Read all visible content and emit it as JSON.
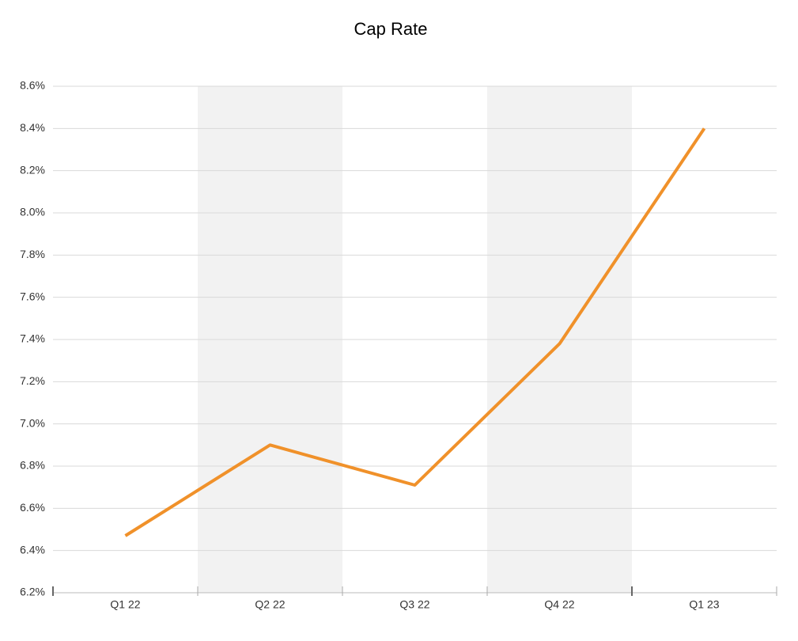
{
  "chart_data": {
    "type": "line",
    "title": "Cap Rate",
    "categories": [
      "Q1 22",
      "Q2 22",
      "Q3 22",
      "Q4 22",
      "Q1 23"
    ],
    "values": [
      6.47,
      6.9,
      6.71,
      7.38,
      8.4
    ],
    "color": "#f0912a",
    "ylim": [
      6.2,
      8.6
    ],
    "yticks": [
      {
        "value": 6.2,
        "label": "6.2%"
      },
      {
        "value": 6.4,
        "label": "6.4%"
      },
      {
        "value": 6.6,
        "label": "6.6%"
      },
      {
        "value": 6.8,
        "label": "6.8%"
      },
      {
        "value": 7.0,
        "label": "7.0%"
      },
      {
        "value": 7.2,
        "label": "7.2%"
      },
      {
        "value": 7.4,
        "label": "7.4%"
      },
      {
        "value": 7.6,
        "label": "7.6%"
      },
      {
        "value": 7.8,
        "label": "7.8%"
      },
      {
        "value": 8.0,
        "label": "8.0%"
      },
      {
        "value": 8.2,
        "label": "8.2%"
      },
      {
        "value": 8.4,
        "label": "8.4%"
      },
      {
        "value": 8.6,
        "label": "8.6%"
      }
    ],
    "grid": true
  }
}
